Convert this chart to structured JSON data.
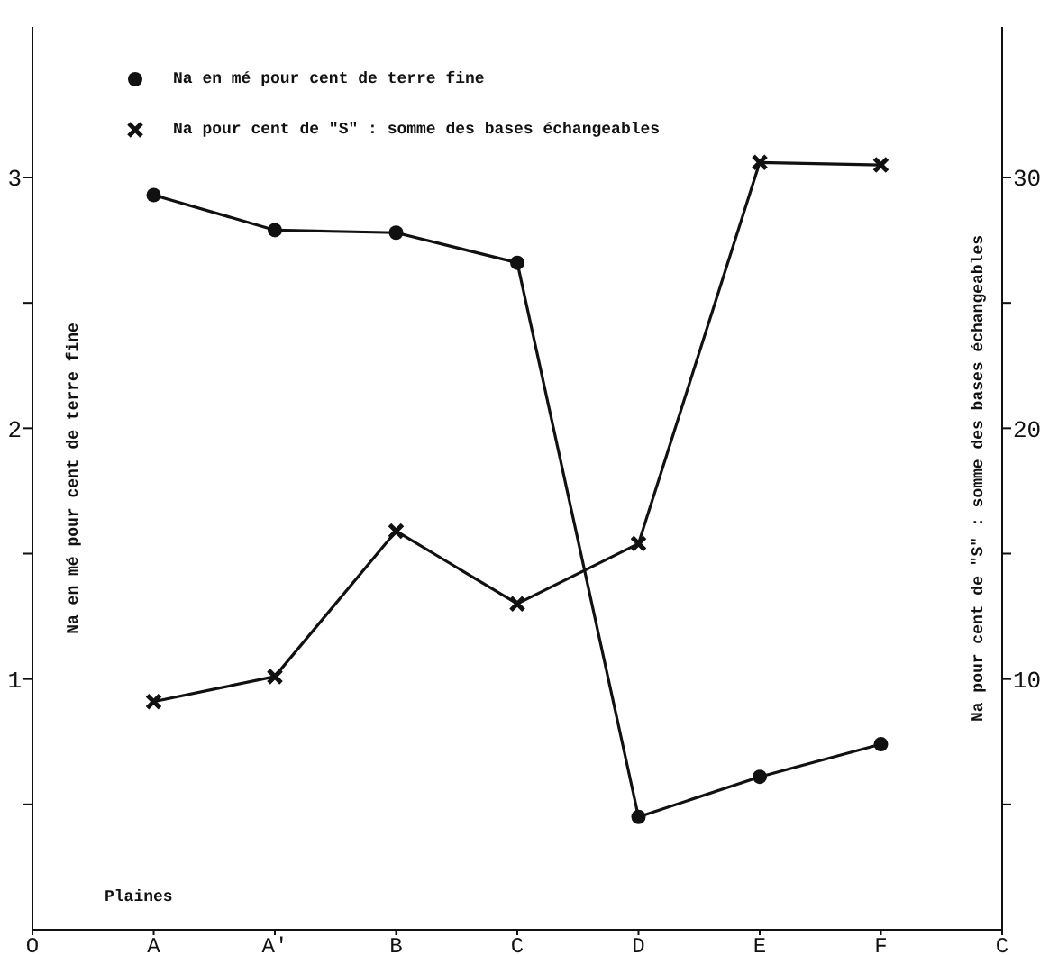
{
  "chart_data": {
    "type": "line",
    "categories": [
      "O",
      "A",
      "A'",
      "B",
      "C",
      "D",
      "E",
      "F",
      "C"
    ],
    "ylabel": "Na en mé pour cent de terre fine",
    "y2label": "Na pour cent de \"S\" : somme des bases échangeables",
    "ylim": [
      0,
      3.6
    ],
    "yticks": [
      {
        "value": 0.5,
        "label": null
      },
      1,
      {
        "value": 1.5,
        "label": null
      },
      2,
      {
        "value": 2.5,
        "label": null
      },
      3
    ],
    "y2lim": [
      0,
      36
    ],
    "y2ticks": [
      {
        "value": 5,
        "label": null
      },
      10,
      {
        "value": 15,
        "label": null
      },
      20,
      {
        "value": 25,
        "label": null
      },
      30
    ],
    "series": [
      {
        "name": "Na en mé pour cent de terre fine",
        "color": "#111111",
        "marker": "circle",
        "values": [
          null,
          2.93,
          2.79,
          2.78,
          2.66,
          0.45,
          0.61,
          0.74,
          null
        ]
      },
      {
        "name": "Na pour cent de \"S\" : somme des bases échangeables",
        "color": "#111111",
        "marker": "cross",
        "axis": "y2",
        "values": [
          null,
          9.1,
          10.1,
          15.9,
          13.0,
          15.4,
          30.6,
          30.5,
          null
        ]
      }
    ],
    "annotations": [
      "Plaines"
    ],
    "legend": "top left",
    "grid": false
  }
}
